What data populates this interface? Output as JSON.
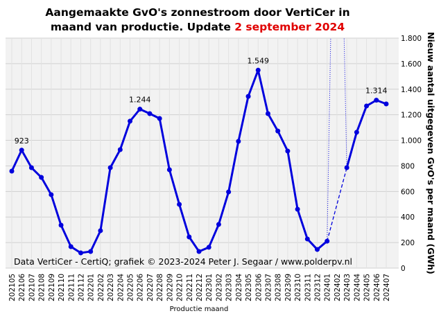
{
  "chart_data": {
    "type": "line",
    "title": [
      "Aangemaakte GvO's zonnestroom door VertiCer in",
      "maand van productie. Update"
    ],
    "update_date": "2 september 2024",
    "annotation": "Data VertiCer - CertiQ; grafiek © 2023-2024 Peter J. Segaar / www.polderpv.nl",
    "x_label": "Productie maand",
    "y_label": "Nieuw aantal uitgegeven GvO's per maand (GWh)",
    "categories": [
      "202105",
      "202106",
      "202107",
      "202108",
      "202109",
      "202110",
      "202111",
      "202112",
      "202201",
      "202202",
      "202203",
      "202204",
      "202205",
      "202206",
      "202207",
      "202208",
      "202209",
      "202210",
      "202211",
      "202212",
      "202301",
      "202302",
      "202303",
      "202304",
      "202305",
      "202306",
      "202307",
      "202308",
      "202309",
      "202310",
      "202311",
      "202312",
      "202401",
      "202402",
      "202403",
      "202404",
      "202405",
      "202406",
      "202407"
    ],
    "series": [
      {
        "color": "#0000dd",
        "values": [
          759,
          923,
          786,
          710,
          575,
          336,
          168,
          119,
          130,
          293,
          786,
          927,
          1150,
          1244,
          1209,
          1171,
          770,
          499,
          244,
          130,
          163,
          342,
          596,
          992,
          1344,
          1549,
          1209,
          1073,
          916,
          461,
          228,
          146,
          211,
          null,
          786,
          1063,
          1269,
          1314,
          1285
        ],
        "value_labels": [
          null,
          "923",
          null,
          null,
          null,
          null,
          null,
          null,
          null,
          null,
          null,
          null,
          null,
          "1.244",
          null,
          null,
          null,
          null,
          null,
          null,
          null,
          null,
          null,
          null,
          null,
          "1.549",
          null,
          null,
          null,
          null,
          null,
          null,
          null,
          null,
          null,
          null,
          null,
          "1.314",
          null
        ]
      }
    ],
    "ylim": [
      0,
      1800
    ],
    "yticks": [
      0,
      200,
      400,
      600,
      800,
      {
        "value": 1000,
        "label": "1.000"
      },
      {
        "value": 1200,
        "label": "1.200"
      },
      {
        "value": 1400,
        "label": "1.400"
      },
      {
        "value": 1600,
        "label": "1.600"
      },
      {
        "value": 1800,
        "label": "1.800"
      }
    ],
    "grid": true
  }
}
